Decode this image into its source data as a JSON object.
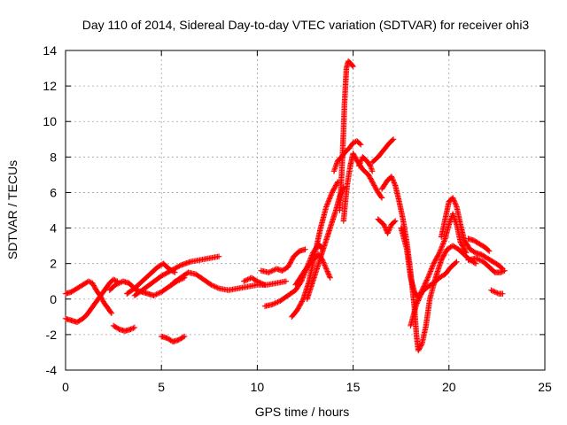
{
  "chart_data": {
    "type": "scatter",
    "title": "Day 110 of 2014, Sidereal Day-to-day VTEC variation (SDTVAR) for receiver ohi3",
    "xlabel": "GPS time / hours",
    "ylabel": "SDTVAR / TECUs",
    "xlim": [
      0,
      25
    ],
    "ylim": [
      -4,
      14
    ],
    "xticks": [
      0,
      5,
      10,
      15,
      20,
      25
    ],
    "yticks": [
      -4,
      -2,
      0,
      2,
      4,
      6,
      8,
      10,
      12,
      14
    ],
    "grid": true,
    "marker": "+",
    "color": "#ff0000",
    "series": [
      {
        "name": "track-1",
        "points": [
          [
            0.0,
            0.3
          ],
          [
            0.3,
            0.4
          ],
          [
            0.6,
            0.6
          ],
          [
            0.9,
            0.8
          ],
          [
            1.2,
            1.0
          ],
          [
            1.4,
            0.9
          ],
          [
            1.6,
            0.5
          ],
          [
            1.8,
            0.2
          ],
          [
            2.0,
            -0.2
          ],
          [
            2.2,
            -0.5
          ],
          [
            2.4,
            -0.8
          ]
        ]
      },
      {
        "name": "track-2",
        "points": [
          [
            0.0,
            -1.1
          ],
          [
            0.3,
            -1.2
          ],
          [
            0.6,
            -1.3
          ],
          [
            0.9,
            -1.1
          ],
          [
            1.1,
            -0.9
          ],
          [
            1.3,
            -0.6
          ],
          [
            1.5,
            -0.3
          ],
          [
            1.7,
            0.0
          ],
          [
            1.9,
            0.3
          ],
          [
            2.1,
            0.6
          ],
          [
            2.3,
            0.9
          ],
          [
            2.5,
            1.1
          ],
          [
            2.7,
            1.0
          ]
        ]
      },
      {
        "name": "track-3",
        "points": [
          [
            2.3,
            0.5
          ],
          [
            2.6,
            0.8
          ],
          [
            3.0,
            1.0
          ],
          [
            3.3,
            0.9
          ],
          [
            3.5,
            0.7
          ],
          [
            3.7,
            0.5
          ],
          [
            4.0,
            0.4
          ],
          [
            4.3,
            0.3
          ],
          [
            4.6,
            0.2
          ],
          [
            5.0,
            0.4
          ],
          [
            5.4,
            0.7
          ],
          [
            5.8,
            1.0
          ],
          [
            6.2,
            1.2
          ]
        ]
      },
      {
        "name": "track-4",
        "points": [
          [
            2.5,
            -1.5
          ],
          [
            2.8,
            -1.7
          ],
          [
            3.1,
            -1.8
          ],
          [
            3.4,
            -1.7
          ],
          [
            3.6,
            -1.6
          ]
        ]
      },
      {
        "name": "track-5",
        "points": [
          [
            3.2,
            0.3
          ],
          [
            3.6,
            0.6
          ],
          [
            4.0,
            1.0
          ],
          [
            4.4,
            1.4
          ],
          [
            4.8,
            1.8
          ],
          [
            5.1,
            2.0
          ],
          [
            5.4,
            1.7
          ],
          [
            5.7,
            1.5
          ]
        ]
      },
      {
        "name": "track-6",
        "points": [
          [
            3.6,
            0.2
          ],
          [
            4.0,
            0.5
          ],
          [
            4.5,
            0.9
          ],
          [
            5.0,
            1.3
          ],
          [
            5.5,
            1.6
          ],
          [
            6.0,
            1.9
          ],
          [
            6.5,
            2.1
          ],
          [
            7.0,
            2.2
          ],
          [
            7.5,
            2.3
          ],
          [
            8.0,
            2.4
          ]
        ]
      },
      {
        "name": "track-7",
        "points": [
          [
            5.6,
            0.9
          ],
          [
            6.0,
            1.2
          ],
          [
            6.4,
            1.5
          ],
          [
            6.8,
            1.4
          ],
          [
            7.2,
            1.1
          ],
          [
            7.6,
            0.8
          ],
          [
            8.0,
            0.6
          ],
          [
            8.5,
            0.5
          ],
          [
            9.0,
            0.6
          ],
          [
            9.5,
            0.7
          ],
          [
            10.0,
            0.8
          ],
          [
            10.5,
            0.8
          ],
          [
            11.0,
            0.9
          ],
          [
            11.5,
            1.0
          ]
        ]
      },
      {
        "name": "track-8",
        "points": [
          [
            5.0,
            -2.1
          ],
          [
            5.3,
            -2.2
          ],
          [
            5.6,
            -2.4
          ],
          [
            5.9,
            -2.3
          ],
          [
            6.2,
            -2.1
          ]
        ]
      },
      {
        "name": "track-9",
        "points": [
          [
            9.3,
            1.0
          ],
          [
            9.7,
            1.2
          ],
          [
            10.0,
            1.0
          ],
          [
            10.4,
            0.8
          ]
        ]
      },
      {
        "name": "track-10",
        "points": [
          [
            10.2,
            1.6
          ],
          [
            10.6,
            1.5
          ],
          [
            11.0,
            1.7
          ],
          [
            11.3,
            1.6
          ],
          [
            11.6,
            1.8
          ],
          [
            11.9,
            2.4
          ],
          [
            12.2,
            2.7
          ],
          [
            12.5,
            2.8
          ]
        ]
      },
      {
        "name": "track-11",
        "points": [
          [
            10.4,
            -0.4
          ],
          [
            10.8,
            -0.3
          ],
          [
            11.2,
            -0.1
          ],
          [
            11.6,
            0.2
          ],
          [
            12.0,
            0.5
          ],
          [
            12.3,
            1.0
          ],
          [
            12.6,
            1.8
          ],
          [
            12.9,
            2.6
          ],
          [
            13.2,
            3.1
          ],
          [
            13.4,
            2.8
          ]
        ]
      },
      {
        "name": "track-12",
        "points": [
          [
            11.8,
            -1.0
          ],
          [
            12.1,
            -0.6
          ],
          [
            12.4,
            0.0
          ],
          [
            12.7,
            1.0
          ],
          [
            13.0,
            2.5
          ],
          [
            13.3,
            4.0
          ],
          [
            13.6,
            5.2
          ],
          [
            13.9,
            6.0
          ],
          [
            14.2,
            6.6
          ]
        ]
      },
      {
        "name": "track-13",
        "points": [
          [
            12.6,
            0.0
          ],
          [
            12.9,
            1.0
          ],
          [
            13.2,
            2.0
          ],
          [
            13.5,
            3.0
          ],
          [
            13.8,
            4.0
          ],
          [
            14.1,
            5.0
          ],
          [
            14.3,
            5.8
          ],
          [
            14.5,
            6.3
          ]
        ]
      },
      {
        "name": "track-14",
        "points": [
          [
            12.0,
            0.8
          ],
          [
            12.3,
            1.3
          ],
          [
            12.6,
            1.8
          ],
          [
            12.9,
            2.2
          ],
          [
            13.2,
            2.5
          ],
          [
            13.4,
            2.2
          ],
          [
            13.6,
            1.7
          ],
          [
            13.8,
            1.2
          ]
        ]
      },
      {
        "name": "track-15",
        "points": [
          [
            14.0,
            7.2
          ],
          [
            14.2,
            7.8
          ],
          [
            14.4,
            8.0
          ],
          [
            14.6,
            8.3
          ],
          [
            14.8,
            8.5
          ],
          [
            15.0,
            8.8
          ],
          [
            15.2,
            8.9
          ],
          [
            15.4,
            8.7
          ]
        ]
      },
      {
        "name": "track-16",
        "points": [
          [
            14.3,
            5.0
          ],
          [
            14.4,
            7.0
          ],
          [
            14.5,
            9.5
          ],
          [
            14.55,
            11.0
          ],
          [
            14.6,
            12.0
          ],
          [
            14.65,
            13.0
          ],
          [
            14.75,
            13.4
          ],
          [
            14.85,
            13.3
          ],
          [
            15.0,
            13.1
          ]
        ]
      },
      {
        "name": "track-17",
        "points": [
          [
            14.5,
            4.4
          ],
          [
            14.6,
            5.5
          ],
          [
            14.7,
            6.5
          ],
          [
            14.85,
            7.5
          ],
          [
            15.0,
            8.2
          ],
          [
            15.2,
            7.8
          ],
          [
            15.5,
            7.3
          ],
          [
            15.8,
            7.0
          ],
          [
            16.0,
            6.6
          ],
          [
            16.3,
            6.0
          ],
          [
            16.5,
            5.7
          ]
        ]
      },
      {
        "name": "track-18",
        "points": [
          [
            15.3,
            7.5
          ],
          [
            15.5,
            8.0
          ],
          [
            15.7,
            7.8
          ],
          [
            15.9,
            7.5
          ],
          [
            16.0,
            7.2
          ]
        ]
      },
      {
        "name": "track-19",
        "points": [
          [
            16.0,
            7.7
          ],
          [
            16.3,
            8.0
          ],
          [
            16.6,
            8.4
          ],
          [
            16.9,
            8.8
          ],
          [
            17.1,
            9.0
          ]
        ]
      },
      {
        "name": "track-20",
        "points": [
          [
            16.3,
            4.5
          ],
          [
            16.6,
            4.2
          ],
          [
            16.8,
            3.7
          ],
          [
            17.0,
            4.2
          ],
          [
            17.2,
            4.4
          ]
        ]
      },
      {
        "name": "track-21",
        "points": [
          [
            16.5,
            6.2
          ],
          [
            16.8,
            6.7
          ],
          [
            17.0,
            6.9
          ],
          [
            17.2,
            6.4
          ],
          [
            17.4,
            5.5
          ],
          [
            17.6,
            4.5
          ],
          [
            17.8,
            3.2
          ],
          [
            18.0,
            1.5
          ],
          [
            18.2,
            -0.5
          ],
          [
            18.3,
            -2.0
          ],
          [
            18.4,
            -2.9
          ],
          [
            18.6,
            -2.5
          ],
          [
            18.8,
            -1.5
          ],
          [
            19.0,
            0.0
          ],
          [
            19.3,
            1.2
          ],
          [
            19.6,
            2.2
          ],
          [
            19.9,
            2.8
          ],
          [
            20.2,
            3.0
          ],
          [
            20.5,
            2.8
          ],
          [
            20.8,
            2.5
          ],
          [
            21.1,
            2.2
          ],
          [
            21.4,
            2.0
          ]
        ]
      },
      {
        "name": "track-22",
        "points": [
          [
            17.5,
            4.0
          ],
          [
            17.8,
            2.8
          ],
          [
            18.0,
            1.2
          ],
          [
            18.2,
            0.4
          ],
          [
            18.4,
            0.1
          ],
          [
            18.6,
            0.5
          ],
          [
            18.9,
            1.2
          ],
          [
            19.2,
            2.0
          ],
          [
            19.5,
            2.6
          ],
          [
            19.8,
            3.4
          ],
          [
            20.0,
            4.2
          ],
          [
            20.2,
            4.8
          ],
          [
            20.4,
            4.2
          ],
          [
            20.6,
            3.2
          ],
          [
            20.9,
            2.6
          ]
        ]
      },
      {
        "name": "track-23",
        "points": [
          [
            18.0,
            -1.5
          ],
          [
            18.3,
            -0.3
          ],
          [
            18.6,
            0.4
          ],
          [
            18.9,
            0.7
          ],
          [
            19.2,
            0.9
          ],
          [
            19.5,
            1.2
          ],
          [
            19.8,
            1.4
          ],
          [
            20.1,
            1.8
          ],
          [
            20.4,
            2.1
          ]
        ]
      },
      {
        "name": "track-24",
        "points": [
          [
            19.6,
            3.5
          ],
          [
            19.8,
            4.5
          ],
          [
            20.0,
            5.5
          ],
          [
            20.2,
            5.7
          ],
          [
            20.4,
            5.2
          ],
          [
            20.6,
            4.2
          ],
          [
            20.8,
            3.3
          ],
          [
            21.1,
            2.8
          ],
          [
            21.4,
            2.6
          ],
          [
            21.7,
            2.5
          ],
          [
            22.0,
            2.3
          ],
          [
            22.3,
            2.1
          ],
          [
            22.6,
            1.9
          ],
          [
            22.8,
            1.7
          ]
        ]
      },
      {
        "name": "track-25",
        "points": [
          [
            21.0,
            2.2
          ],
          [
            21.4,
            2.3
          ],
          [
            21.8,
            2.1
          ],
          [
            22.1,
            1.8
          ],
          [
            22.4,
            1.5
          ],
          [
            22.7,
            1.5
          ],
          [
            22.9,
            1.6
          ]
        ]
      },
      {
        "name": "track-26",
        "points": [
          [
            21.0,
            3.4
          ],
          [
            21.3,
            3.3
          ],
          [
            21.6,
            3.1
          ],
          [
            21.9,
            2.9
          ],
          [
            22.1,
            2.7
          ]
        ]
      },
      {
        "name": "track-27",
        "points": [
          [
            22.2,
            0.5
          ],
          [
            22.4,
            0.4
          ],
          [
            22.6,
            0.3
          ],
          [
            22.8,
            0.3
          ]
        ]
      }
    ]
  }
}
